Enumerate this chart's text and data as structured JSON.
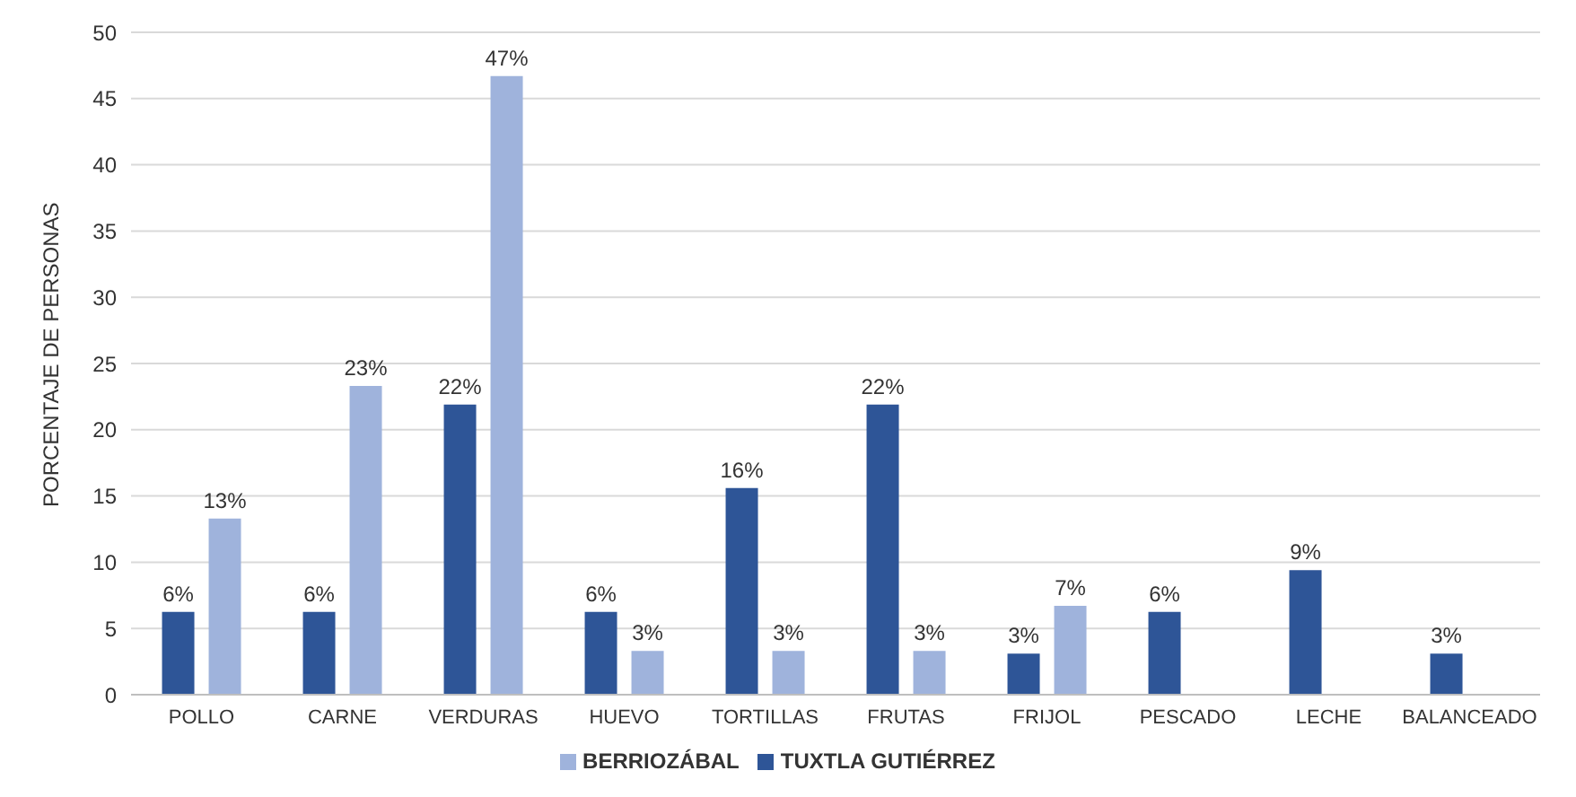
{
  "chart_data": {
    "type": "bar",
    "ylabel": "PORCENTAJE DE PERSONAS",
    "categories": [
      "POLLO",
      "CARNE",
      "VERDURAS",
      "HUEVO",
      "TORTILLAS",
      "FRUTAS",
      "FRIJOL",
      "PESCADO",
      "LECHE",
      "BALANCEADO"
    ],
    "series": [
      {
        "name": "TUXTLA GUTIÉRREZ",
        "color": "#2e5597",
        "values": [
          6.25,
          6.25,
          21.9,
          6.25,
          15.6,
          21.9,
          3.1,
          6.25,
          9.4,
          3.1
        ],
        "value_labels": [
          "6%",
          "6%",
          "22%",
          "6%",
          "16%",
          "22%",
          "3%",
          "6%",
          "9%",
          "3%"
        ]
      },
      {
        "name": "BERRIOZÁBAL",
        "color": "#9fb3dc",
        "values": [
          13.3,
          23.3,
          46.7,
          3.3,
          3.3,
          3.3,
          6.7,
          null,
          null,
          null
        ],
        "value_labels": [
          "13%",
          "23%",
          "47%",
          "3%",
          "3%",
          "3%",
          "7%",
          null,
          null,
          null
        ]
      }
    ],
    "ylim": [
      0,
      50
    ],
    "yticks": [
      0,
      5,
      10,
      15,
      20,
      25,
      30,
      35,
      40,
      45,
      50
    ],
    "grid": "y",
    "legend": "bottom"
  }
}
